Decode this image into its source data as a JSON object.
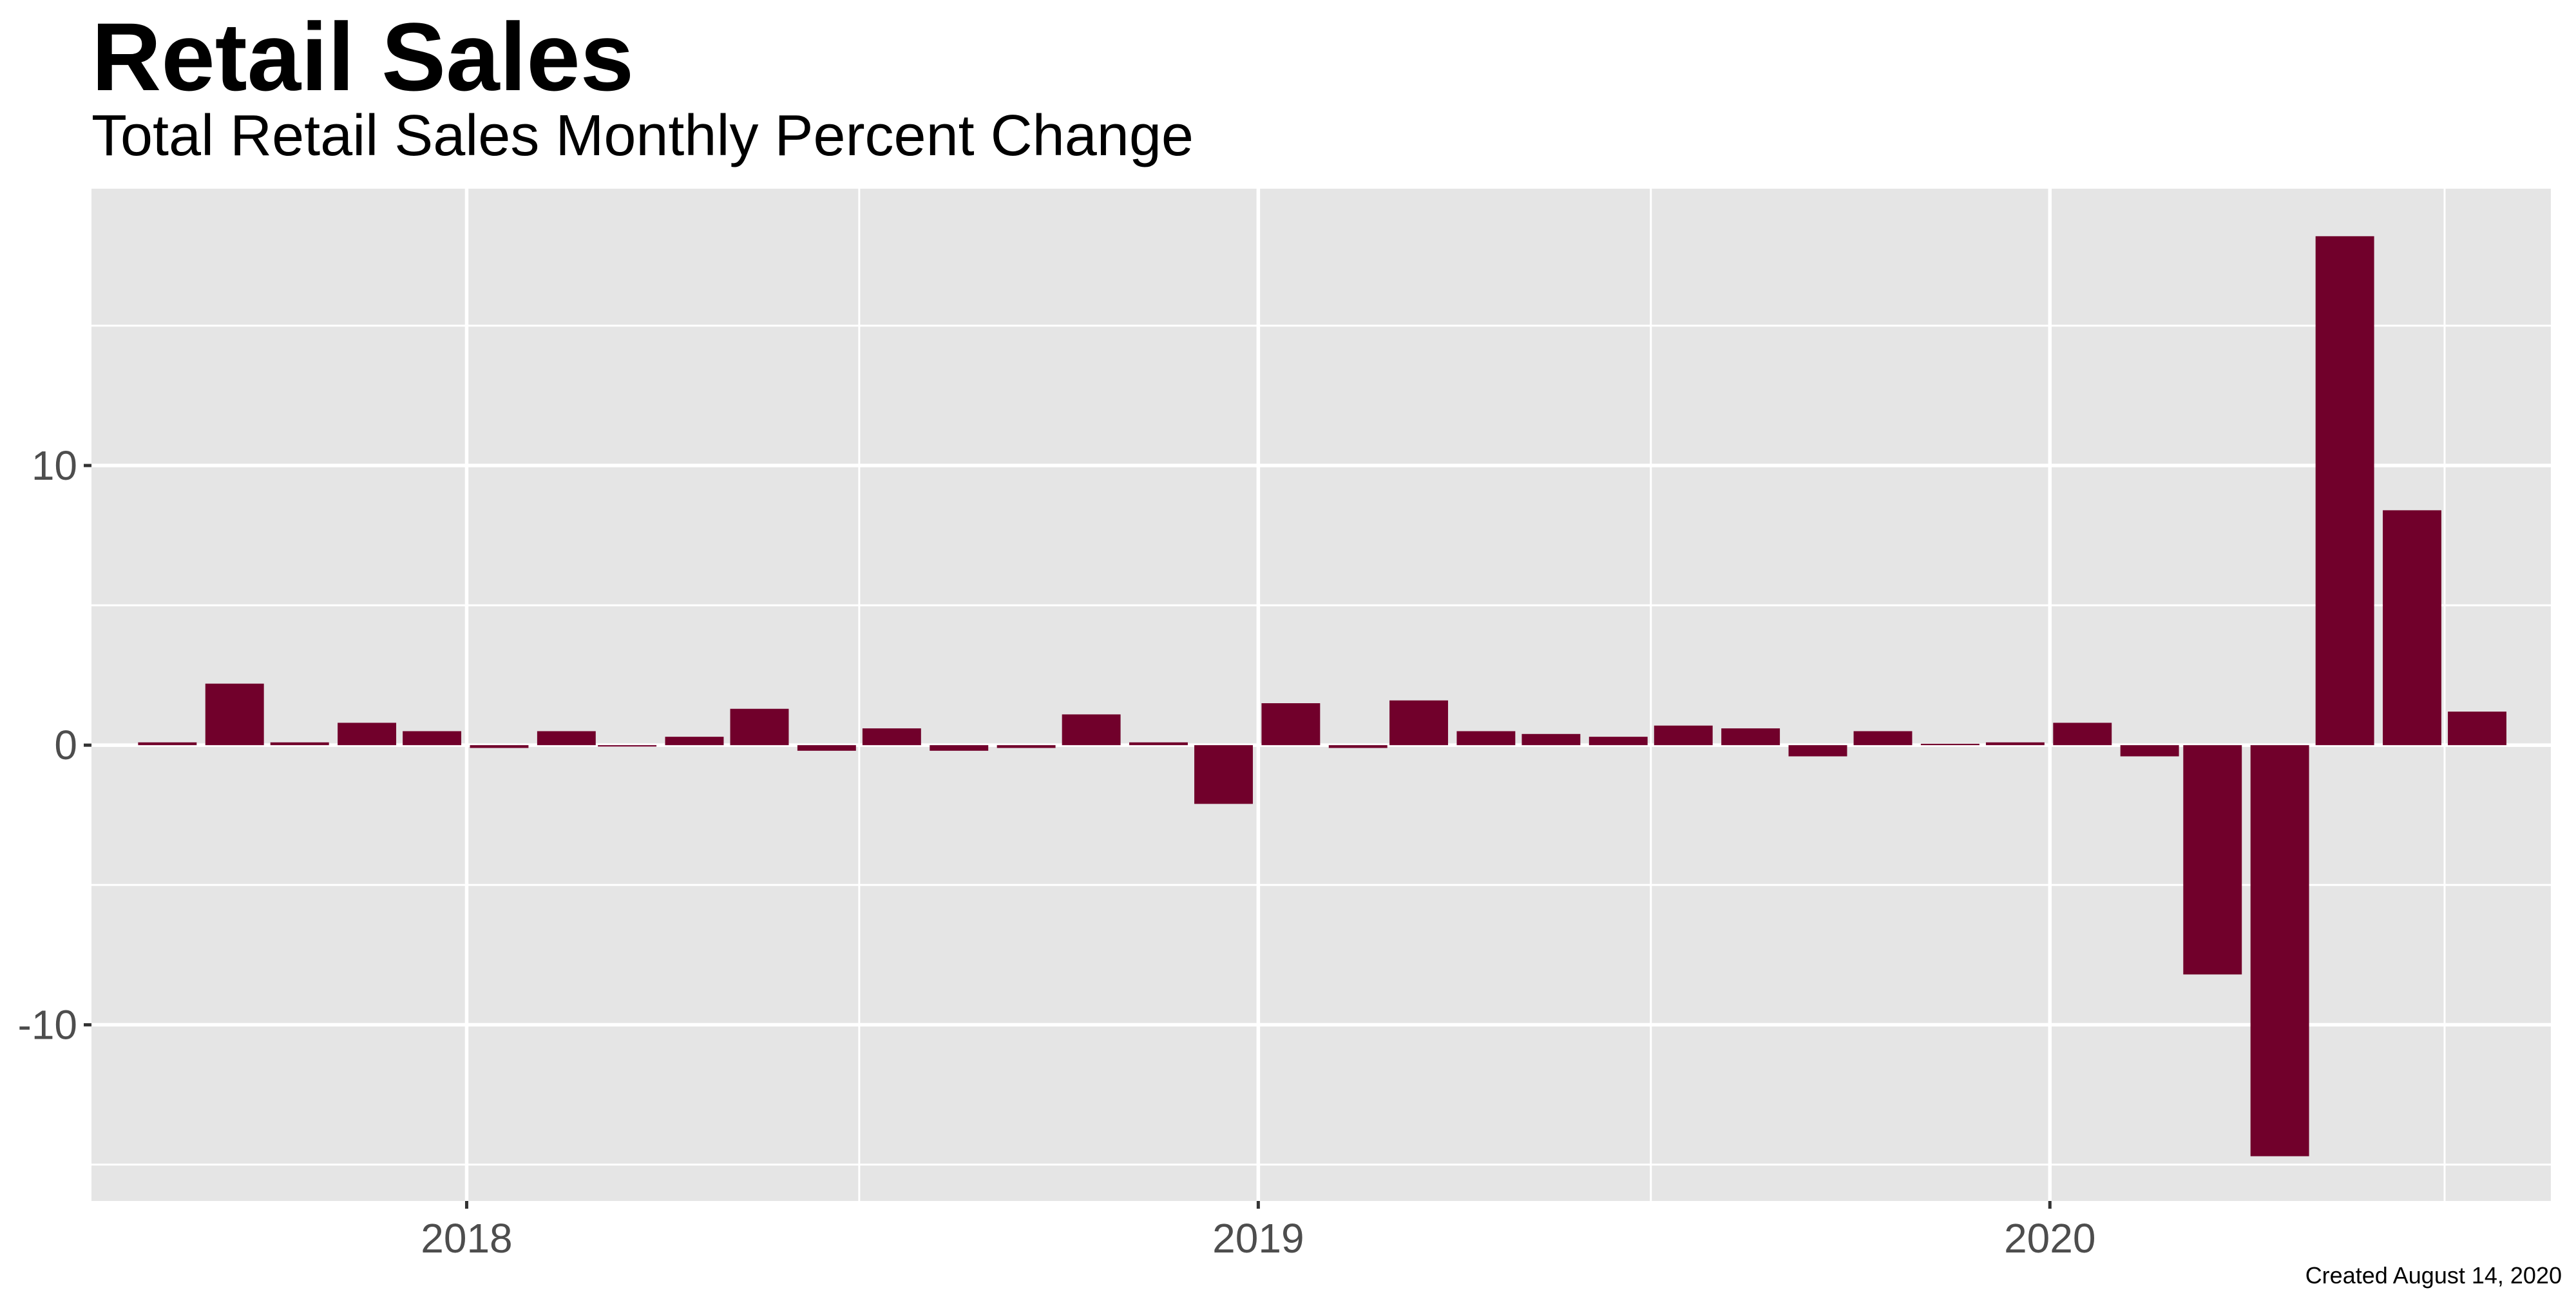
{
  "chart_data": {
    "type": "bar",
    "title": "Retail Sales",
    "subtitle": "Total Retail Sales Monthly Percent Change",
    "caption": "Created August 14, 2020",
    "xlabel": "",
    "ylabel": "",
    "x": [
      "2017-08",
      "2017-09",
      "2017-10",
      "2017-11",
      "2017-12",
      "2018-01",
      "2018-02",
      "2018-03",
      "2018-04",
      "2018-05",
      "2018-06",
      "2018-07",
      "2018-08",
      "2018-09",
      "2018-10",
      "2018-11",
      "2018-12",
      "2019-01",
      "2019-02",
      "2019-03",
      "2019-04",
      "2019-05",
      "2019-06",
      "2019-07",
      "2019-08",
      "2019-09",
      "2019-10",
      "2019-11",
      "2019-12",
      "2020-01",
      "2020-02",
      "2020-03",
      "2020-04",
      "2020-05",
      "2020-06",
      "2020-07"
    ],
    "values": [
      0.1,
      2.2,
      0.1,
      0.8,
      0.5,
      -0.1,
      0.5,
      -0.05,
      0.3,
      1.3,
      -0.2,
      0.6,
      -0.2,
      -0.1,
      1.1,
      0.1,
      -2.1,
      1.5,
      -0.1,
      1.6,
      0.5,
      0.4,
      0.3,
      0.7,
      0.6,
      -0.4,
      0.5,
      0.05,
      0.1,
      0.8,
      -0.4,
      -8.2,
      -14.7,
      18.2,
      8.4,
      1.2
    ],
    "xlim": [
      "2017-07-12",
      "2020-08-19"
    ],
    "ylim": [
      -16.3,
      19.9
    ],
    "x_ticks": [
      {
        "date": "2018-01-01",
        "label": "2018"
      },
      {
        "date": "2019-01-01",
        "label": "2019"
      },
      {
        "date": "2020-01-01",
        "label": "2020"
      }
    ],
    "x_minor_breaks": [
      "2017-07-01",
      "2018-07-01",
      "2019-07-01",
      "2020-07-01"
    ],
    "y_ticks": [
      {
        "value": -10,
        "label": "-10"
      },
      {
        "value": 0,
        "label": "0"
      },
      {
        "value": 10,
        "label": "10"
      }
    ],
    "y_minor_breaks": [
      -15,
      -5,
      5,
      15
    ],
    "grid": true,
    "legend": "none",
    "colors": {
      "bar": "#71002b",
      "panel": "#e5e5e5",
      "grid": "#ffffff",
      "tick_text": "#4d4d4d",
      "tick": "#333333"
    }
  }
}
